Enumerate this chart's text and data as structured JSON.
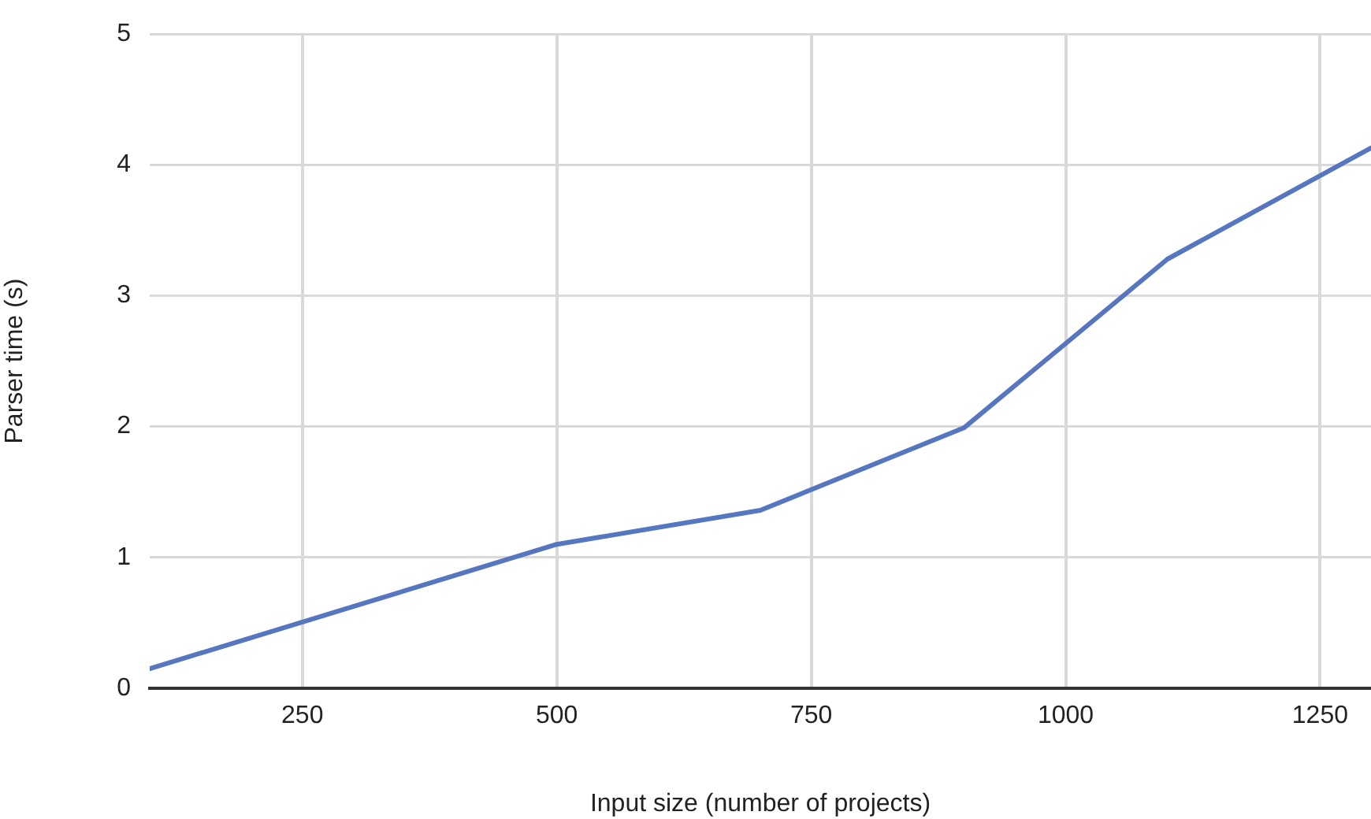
{
  "chart_data": {
    "type": "line",
    "xlabel": "Input size (number of projects)",
    "ylabel": "Parser time (s)",
    "x": [
      100,
      500,
      700,
      900,
      1100,
      1300
    ],
    "series": [
      {
        "color": "#5677bf",
        "values": [
          0.15,
          1.1,
          1.36,
          1.99,
          3.28,
          4.13
        ]
      }
    ],
    "xlim": [
      100,
      1300
    ],
    "xticks": [
      250,
      500,
      750,
      1000,
      1250
    ],
    "ylim": [
      0,
      5
    ],
    "yticks": [
      0,
      1,
      2,
      3,
      4,
      5
    ],
    "grid": true,
    "legend": false,
    "marker": "none",
    "line_style": "solid"
  }
}
